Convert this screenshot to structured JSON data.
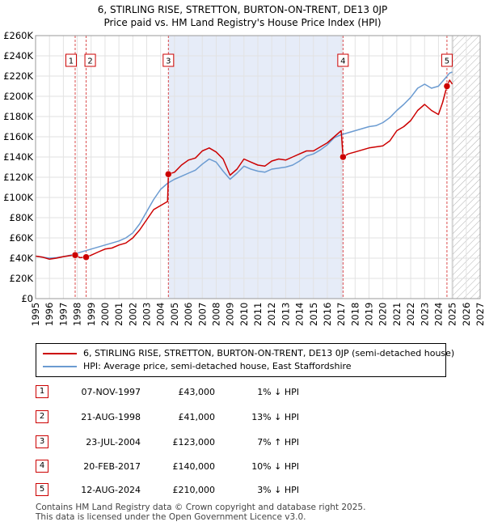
{
  "title_line1": "6, STIRLING RISE, STRETTON, BURTON-ON-TRENT, DE13 0JP",
  "title_line2": "Price paid vs. HM Land Registry's House Price Index (HPI)",
  "legend": {
    "property": "6, STIRLING RISE, STRETTON, BURTON-ON-TRENT, DE13 0JP (semi-detached house)",
    "hpi": "HPI: Average price, semi-detached house, East Staffordshire"
  },
  "transactions": [
    {
      "num": "1",
      "date": "07-NOV-1997",
      "price": "£43,000",
      "hpi": "1% ↓ HPI"
    },
    {
      "num": "2",
      "date": "21-AUG-1998",
      "price": "£41,000",
      "hpi": "13% ↓ HPI"
    },
    {
      "num": "3",
      "date": "23-JUL-2004",
      "price": "£123,000",
      "hpi": "7% ↑ HPI"
    },
    {
      "num": "4",
      "date": "20-FEB-2017",
      "price": "£140,000",
      "hpi": "10% ↓ HPI"
    },
    {
      "num": "5",
      "date": "12-AUG-2024",
      "price": "£210,000",
      "hpi": "3% ↓ HPI"
    }
  ],
  "footer_line1": "Contains HM Land Registry data © Crown copyright and database right 2025.",
  "footer_line2": "This data is licensed under the Open Government Licence v3.0.",
  "colors": {
    "property": "#cc0000",
    "hpi": "#6b9bd1",
    "shade": "#e6ecf8",
    "marker_line": "#cc0000"
  },
  "chart_data": {
    "type": "line",
    "xlim": [
      1995,
      2027
    ],
    "ylim": [
      0,
      260000
    ],
    "x_ticks": [
      "1995",
      "1996",
      "1997",
      "1998",
      "1999",
      "2000",
      "2001",
      "2002",
      "2003",
      "2004",
      "2005",
      "2006",
      "2007",
      "2008",
      "2009",
      "2010",
      "2011",
      "2012",
      "2013",
      "2014",
      "2015",
      "2016",
      "2017",
      "2018",
      "2019",
      "2020",
      "2021",
      "2022",
      "2023",
      "2024",
      "2025",
      "2026",
      "2027"
    ],
    "y_ticks": [
      {
        "value": 0,
        "label": "£0"
      },
      {
        "value": 20000,
        "label": "£20K"
      },
      {
        "value": 40000,
        "label": "£40K"
      },
      {
        "value": 60000,
        "label": "£60K"
      },
      {
        "value": 80000,
        "label": "£80K"
      },
      {
        "value": 100000,
        "label": "£100K"
      },
      {
        "value": 120000,
        "label": "£120K"
      },
      {
        "value": 140000,
        "label": "£140K"
      },
      {
        "value": 160000,
        "label": "£160K"
      },
      {
        "value": 180000,
        "label": "£180K"
      },
      {
        "value": 200000,
        "label": "£200K"
      },
      {
        "value": 220000,
        "label": "£220K"
      },
      {
        "value": 240000,
        "label": "£240K"
      },
      {
        "value": 260000,
        "label": "£260K"
      }
    ],
    "grid": true,
    "shaded_period": [
      2004.56,
      2017.13
    ],
    "forecast_from": 2025.0,
    "sales": [
      {
        "label": "1",
        "x": 1997.85,
        "y": 43000
      },
      {
        "label": "2",
        "x": 1998.64,
        "y": 41000
      },
      {
        "label": "3",
        "x": 2004.56,
        "y": 123000
      },
      {
        "label": "4",
        "x": 2017.13,
        "y": 140000
      },
      {
        "label": "5",
        "x": 2024.61,
        "y": 210000
      }
    ],
    "series": [
      {
        "name": "6, STIRLING RISE, STRETTON, BURTON-ON-TRENT, DE13 0JP (semi-detached house)",
        "color": "#cc0000",
        "x": [
          1995.0,
          1995.5,
          1996.0,
          1996.5,
          1997.0,
          1997.5,
          1997.85,
          1998.2,
          1998.64,
          1999.0,
          1999.5,
          2000.0,
          2000.5,
          2001.0,
          2001.5,
          2002.0,
          2002.5,
          2003.0,
          2003.5,
          2004.0,
          2004.5,
          2004.56,
          2005.0,
          2005.5,
          2006.0,
          2006.5,
          2007.0,
          2007.5,
          2008.0,
          2008.5,
          2009.0,
          2009.5,
          2010.0,
          2010.5,
          2011.0,
          2011.5,
          2012.0,
          2012.5,
          2013.0,
          2013.5,
          2014.0,
          2014.5,
          2015.0,
          2015.5,
          2016.0,
          2016.5,
          2017.0,
          2017.13,
          2017.5,
          2018.0,
          2018.5,
          2019.0,
          2019.5,
          2020.0,
          2020.5,
          2021.0,
          2021.5,
          2022.0,
          2022.5,
          2023.0,
          2023.5,
          2024.0,
          2024.3,
          2024.61,
          2024.8,
          2025.0
        ],
        "y": [
          42000,
          41000,
          39000,
          40000,
          41500,
          42500,
          43000,
          40500,
          41000,
          43000,
          46000,
          49000,
          50000,
          53000,
          55000,
          60000,
          68000,
          78000,
          88000,
          92000,
          96000,
          123000,
          125000,
          132000,
          137000,
          139000,
          146000,
          149000,
          145000,
          138000,
          122000,
          128000,
          138000,
          135000,
          132000,
          131000,
          136000,
          138000,
          137000,
          140000,
          143000,
          146000,
          146000,
          150000,
          154000,
          160000,
          166000,
          140000,
          143000,
          145000,
          147000,
          149000,
          150000,
          151000,
          156000,
          166000,
          170000,
          176000,
          186000,
          192000,
          186000,
          182000,
          194000,
          210000,
          216000,
          212000
        ]
      },
      {
        "name": "HPI: Average price, semi-detached house, East Staffordshire",
        "color": "#6b9bd1",
        "x": [
          1995.0,
          1995.5,
          1996.0,
          1996.5,
          1997.0,
          1997.5,
          1998.0,
          1998.5,
          1999.0,
          1999.5,
          2000.0,
          2000.5,
          2001.0,
          2001.5,
          2002.0,
          2002.5,
          2003.0,
          2003.5,
          2004.0,
          2004.5,
          2005.0,
          2005.5,
          2006.0,
          2006.5,
          2007.0,
          2007.5,
          2008.0,
          2008.5,
          2009.0,
          2009.5,
          2010.0,
          2010.5,
          2011.0,
          2011.5,
          2012.0,
          2012.5,
          2013.0,
          2013.5,
          2014.0,
          2014.5,
          2015.0,
          2015.5,
          2016.0,
          2016.5,
          2017.0,
          2017.5,
          2018.0,
          2018.5,
          2019.0,
          2019.5,
          2020.0,
          2020.5,
          2021.0,
          2021.5,
          2022.0,
          2022.5,
          2023.0,
          2023.5,
          2024.0,
          2024.5,
          2024.8,
          2025.0
        ],
        "y": [
          42000,
          41000,
          40000,
          40500,
          41500,
          43000,
          45000,
          47000,
          49000,
          51000,
          53000,
          55000,
          57000,
          60000,
          65000,
          74000,
          86000,
          98000,
          108000,
          114000,
          118000,
          121000,
          124000,
          127000,
          133000,
          138000,
          135000,
          126000,
          118000,
          124000,
          131000,
          128000,
          126000,
          125000,
          128000,
          129000,
          130000,
          132000,
          136000,
          141000,
          143000,
          147000,
          152000,
          159000,
          162000,
          164000,
          166000,
          168000,
          170000,
          171000,
          174000,
          179000,
          186000,
          192000,
          199000,
          208000,
          212000,
          208000,
          210000,
          218000,
          223000,
          224000
        ]
      }
    ]
  }
}
